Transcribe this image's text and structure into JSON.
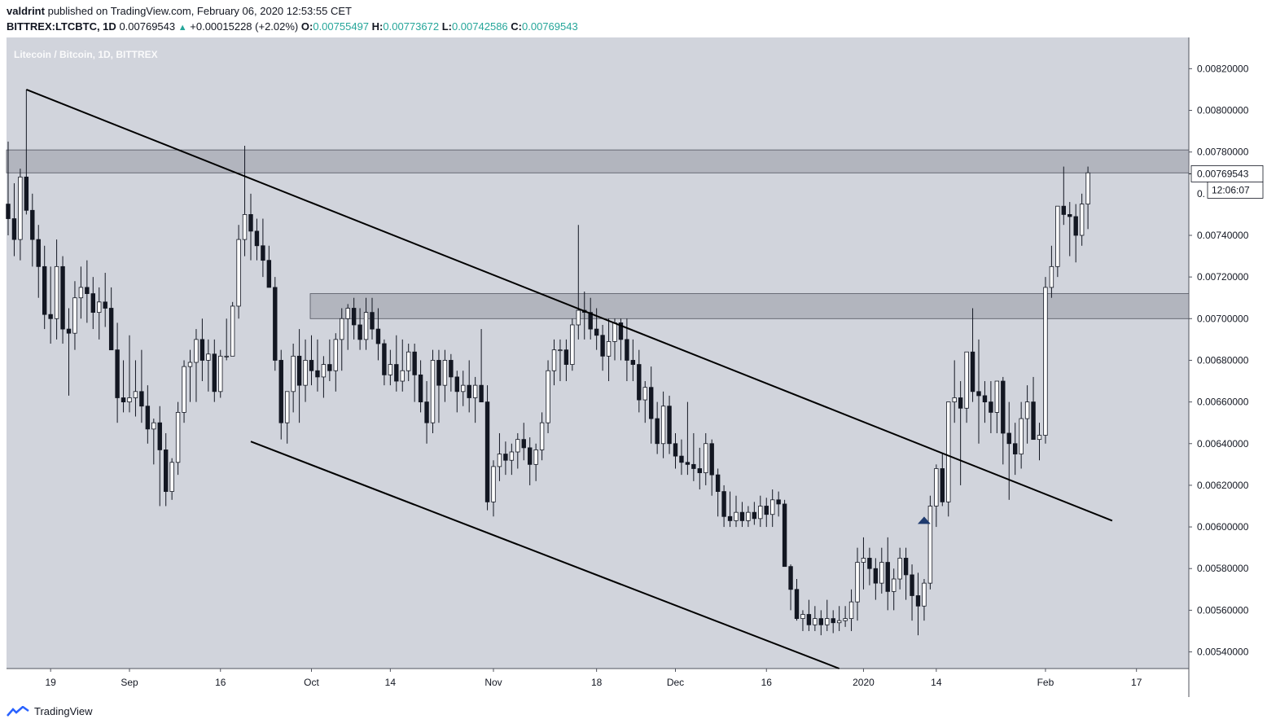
{
  "header": {
    "author": "valdrint",
    "published_text": "published on TradingView.com, February 06, 2020 12:53:55 CET",
    "symbol": "BITTREX:LTCBTC, 1D",
    "last": "0.00769543",
    "change": "+0.00015228 (+2.02%)",
    "o_label": "O:",
    "o": "0.00755497",
    "h_label": "H:",
    "h": "0.00773672",
    "l_label": "L:",
    "l": "0.00742586",
    "c_label": "C:",
    "c": "0.00769543"
  },
  "watermark": "Litecoin / Bitcoin, 1D, BITTREX",
  "brand": {
    "name": "TradingView"
  },
  "price_tag": {
    "value": "0.00769543",
    "countdown": "12:06:07",
    "hidden_tick": "0."
  },
  "colors": {
    "bg": "#d1d4dc",
    "zone": "#b2b5be",
    "candle_up": "#ffffff",
    "candle_down": "#131722",
    "arrow": "#1e3a6e",
    "positive": "#26a69a"
  },
  "chart_data": {
    "type": "candlestick",
    "title": "Litecoin / Bitcoin, 1D, BITTREX",
    "x_ticks": [
      "19",
      "Sep",
      "16",
      "Oct",
      "14",
      "Nov",
      "18",
      "Dec",
      "16",
      "2020",
      "14",
      "Feb",
      "17"
    ],
    "y_ticks": [
      "0.00820000",
      "0.00800000",
      "0.00780000",
      "0.00740000",
      "0.00720000",
      "0.00700000",
      "0.00680000",
      "0.00660000",
      "0.00640000",
      "0.00620000",
      "0.00600000",
      "0.00580000",
      "0.00560000",
      "0.00540000"
    ],
    "ylim": [
      0.00532,
      0.00835
    ],
    "resistance_zones": [
      {
        "low": 0.0077,
        "high": 0.00781
      },
      {
        "low": 0.007,
        "high": 0.00712
      }
    ],
    "trendlines": [
      {
        "name": "upper",
        "from": {
          "day": 3,
          "price": 0.0081
        },
        "to": {
          "day": 182,
          "price": 0.00603
        }
      },
      {
        "name": "lower",
        "from": {
          "day": 40,
          "price": 0.00641
        },
        "to": {
          "day": 137,
          "price": 0.00532
        }
      }
    ],
    "marker": {
      "type": "triangle-up",
      "day": 151,
      "price": 0.00603
    },
    "candles_ohlc": [
      [
        0.00755,
        0.00785,
        0.0074,
        0.00748
      ],
      [
        0.00748,
        0.00765,
        0.0073,
        0.00738
      ],
      [
        0.00738,
        0.00772,
        0.00728,
        0.00768
      ],
      [
        0.00768,
        0.0081,
        0.0075,
        0.00752
      ],
      [
        0.00752,
        0.0076,
        0.00725,
        0.00738
      ],
      [
        0.00738,
        0.00745,
        0.0071,
        0.00725
      ],
      [
        0.00725,
        0.00735,
        0.00695,
        0.00702
      ],
      [
        0.00702,
        0.00725,
        0.00688,
        0.007
      ],
      [
        0.007,
        0.00738,
        0.0069,
        0.00725
      ],
      [
        0.00725,
        0.0073,
        0.00688,
        0.00695
      ],
      [
        0.00695,
        0.00705,
        0.00663,
        0.00693
      ],
      [
        0.00693,
        0.00718,
        0.00685,
        0.0071
      ],
      [
        0.0071,
        0.00725,
        0.007,
        0.00715
      ],
      [
        0.00715,
        0.00728,
        0.00698,
        0.00712
      ],
      [
        0.00712,
        0.0072,
        0.00695,
        0.00703
      ],
      [
        0.00703,
        0.00715,
        0.0069,
        0.00708
      ],
      [
        0.00708,
        0.00722,
        0.00696,
        0.00705
      ],
      [
        0.00705,
        0.00715,
        0.00685,
        0.00685
      ],
      [
        0.00685,
        0.00698,
        0.0065,
        0.00662
      ],
      [
        0.00662,
        0.0068,
        0.00655,
        0.0066
      ],
      [
        0.0066,
        0.00692,
        0.00655,
        0.00662
      ],
      [
        0.00662,
        0.0068,
        0.00653,
        0.00665
      ],
      [
        0.00665,
        0.00685,
        0.0065,
        0.00658
      ],
      [
        0.00658,
        0.00668,
        0.0064,
        0.00647
      ],
      [
        0.00647,
        0.00652,
        0.0063,
        0.0065
      ],
      [
        0.0065,
        0.00658,
        0.0061,
        0.00637
      ],
      [
        0.00637,
        0.00645,
        0.0061,
        0.00617
      ],
      [
        0.00617,
        0.00633,
        0.00613,
        0.00631
      ],
      [
        0.00631,
        0.0066,
        0.00625,
        0.00655
      ],
      [
        0.00655,
        0.0068,
        0.0065,
        0.00677
      ],
      [
        0.00677,
        0.00685,
        0.0066,
        0.00679
      ],
      [
        0.00679,
        0.00695,
        0.0066,
        0.0069
      ],
      [
        0.0069,
        0.007,
        0.0067,
        0.0068
      ],
      [
        0.0068,
        0.0069,
        0.00665,
        0.00683
      ],
      [
        0.00683,
        0.0069,
        0.0066,
        0.00665
      ],
      [
        0.00665,
        0.00685,
        0.00662,
        0.00682
      ],
      [
        0.00682,
        0.007,
        0.0068,
        0.00682
      ],
      [
        0.00682,
        0.00708,
        0.00682,
        0.00706
      ],
      [
        0.00706,
        0.00745,
        0.007,
        0.00738
      ],
      [
        0.00738,
        0.00783,
        0.0073,
        0.0075
      ],
      [
        0.0075,
        0.0076,
        0.00728,
        0.00742
      ],
      [
        0.00742,
        0.00748,
        0.00728,
        0.00735
      ],
      [
        0.00735,
        0.00748,
        0.0072,
        0.00728
      ],
      [
        0.00728,
        0.00735,
        0.00715,
        0.00715
      ],
      [
        0.00715,
        0.0072,
        0.00675,
        0.0068
      ],
      [
        0.0068,
        0.00685,
        0.00642,
        0.0065
      ],
      [
        0.0065,
        0.00665,
        0.0064,
        0.00665
      ],
      [
        0.00665,
        0.00688,
        0.00655,
        0.00682
      ],
      [
        0.00682,
        0.00695,
        0.0065,
        0.00668
      ],
      [
        0.00668,
        0.0069,
        0.0066,
        0.0068
      ],
      [
        0.0068,
        0.00692,
        0.00668,
        0.00675
      ],
      [
        0.00675,
        0.0069,
        0.00665,
        0.00672
      ],
      [
        0.00672,
        0.00682,
        0.00662,
        0.00678
      ],
      [
        0.00678,
        0.0069,
        0.0067,
        0.00675
      ],
      [
        0.00675,
        0.00693,
        0.00665,
        0.0069
      ],
      [
        0.0069,
        0.00705,
        0.00675,
        0.007
      ],
      [
        0.007,
        0.00707,
        0.00685,
        0.00705
      ],
      [
        0.00705,
        0.0071,
        0.0069,
        0.00697
      ],
      [
        0.00697,
        0.00705,
        0.00685,
        0.0069
      ],
      [
        0.0069,
        0.0071,
        0.00685,
        0.00703
      ],
      [
        0.00703,
        0.0071,
        0.0069,
        0.00695
      ],
      [
        0.00695,
        0.00705,
        0.0068,
        0.00688
      ],
      [
        0.00688,
        0.0069,
        0.00668,
        0.00673
      ],
      [
        0.00673,
        0.00685,
        0.00668,
        0.00678
      ],
      [
        0.00678,
        0.00692,
        0.00665,
        0.0067
      ],
      [
        0.0067,
        0.0069,
        0.00665,
        0.00675
      ],
      [
        0.00675,
        0.00688,
        0.0067,
        0.00684
      ],
      [
        0.00684,
        0.00688,
        0.0066,
        0.00673
      ],
      [
        0.00673,
        0.0068,
        0.00655,
        0.0066
      ],
      [
        0.0066,
        0.0067,
        0.0064,
        0.0065
      ],
      [
        0.0065,
        0.00685,
        0.00645,
        0.0068
      ],
      [
        0.0068,
        0.00685,
        0.0065,
        0.00668
      ],
      [
        0.00668,
        0.00685,
        0.0066,
        0.0068
      ],
      [
        0.0068,
        0.00683,
        0.00665,
        0.00672
      ],
      [
        0.00672,
        0.00675,
        0.00655,
        0.00665
      ],
      [
        0.00665,
        0.00675,
        0.00658,
        0.00668
      ],
      [
        0.00668,
        0.0068,
        0.00655,
        0.00662
      ],
      [
        0.00662,
        0.00672,
        0.0065,
        0.00668
      ],
      [
        0.00668,
        0.00695,
        0.00662,
        0.0066
      ],
      [
        0.0066,
        0.00668,
        0.00608,
        0.00612
      ],
      [
        0.00612,
        0.00632,
        0.00605,
        0.00629
      ],
      [
        0.00629,
        0.00645,
        0.00622,
        0.00635
      ],
      [
        0.00635,
        0.00641,
        0.00625,
        0.00632
      ],
      [
        0.00632,
        0.0064,
        0.00625,
        0.00636
      ],
      [
        0.00636,
        0.00645,
        0.00628,
        0.00642
      ],
      [
        0.00642,
        0.0065,
        0.00632,
        0.00638
      ],
      [
        0.00638,
        0.00643,
        0.0062,
        0.0063
      ],
      [
        0.0063,
        0.0064,
        0.00622,
        0.00637
      ],
      [
        0.00637,
        0.00655,
        0.00632,
        0.0065
      ],
      [
        0.0065,
        0.0068,
        0.00645,
        0.00675
      ],
      [
        0.00675,
        0.0069,
        0.00668,
        0.00685
      ],
      [
        0.00685,
        0.0069,
        0.0067,
        0.00685
      ],
      [
        0.00685,
        0.0069,
        0.0067,
        0.00678
      ],
      [
        0.00678,
        0.007,
        0.00675,
        0.00697
      ],
      [
        0.00697,
        0.00745,
        0.0069,
        0.00704
      ],
      [
        0.00704,
        0.00713,
        0.0069,
        0.00703
      ],
      [
        0.00703,
        0.0071,
        0.0069,
        0.00695
      ],
      [
        0.00695,
        0.00705,
        0.00685,
        0.00692
      ],
      [
        0.00692,
        0.00697,
        0.00675,
        0.00682
      ],
      [
        0.00682,
        0.007,
        0.0067,
        0.00689
      ],
      [
        0.00689,
        0.007,
        0.0068,
        0.00698
      ],
      [
        0.00698,
        0.007,
        0.0068,
        0.0069
      ],
      [
        0.0069,
        0.007,
        0.0067,
        0.0068
      ],
      [
        0.0068,
        0.0069,
        0.0067,
        0.00678
      ],
      [
        0.00678,
        0.00685,
        0.00655,
        0.00661
      ],
      [
        0.00661,
        0.0067,
        0.0065,
        0.00667
      ],
      [
        0.00667,
        0.00677,
        0.0064,
        0.00652
      ],
      [
        0.00652,
        0.0066,
        0.00635,
        0.0064
      ],
      [
        0.0064,
        0.00665,
        0.00633,
        0.00658
      ],
      [
        0.00658,
        0.00663,
        0.00635,
        0.0064
      ],
      [
        0.0064,
        0.00645,
        0.00628,
        0.00634
      ],
      [
        0.00634,
        0.00642,
        0.00625,
        0.00631
      ],
      [
        0.00631,
        0.0066,
        0.00625,
        0.0063
      ],
      [
        0.0063,
        0.00645,
        0.00622,
        0.00628
      ],
      [
        0.00628,
        0.00638,
        0.00618,
        0.00626
      ],
      [
        0.00626,
        0.00645,
        0.0062,
        0.0064
      ],
      [
        0.0064,
        0.00642,
        0.00615,
        0.00625
      ],
      [
        0.00625,
        0.00628,
        0.00605,
        0.00617
      ],
      [
        0.00617,
        0.0062,
        0.006,
        0.00605
      ],
      [
        0.00605,
        0.00617,
        0.006,
        0.00603
      ],
      [
        0.00603,
        0.00615,
        0.006,
        0.00607
      ],
      [
        0.00607,
        0.00612,
        0.006,
        0.00603
      ],
      [
        0.00603,
        0.0061,
        0.006,
        0.00607
      ],
      [
        0.00607,
        0.00612,
        0.00601,
        0.00604
      ],
      [
        0.00604,
        0.00615,
        0.006,
        0.0061
      ],
      [
        0.0061,
        0.00614,
        0.006,
        0.00606
      ],
      [
        0.00606,
        0.00618,
        0.006,
        0.00613
      ],
      [
        0.00613,
        0.00617,
        0.00605,
        0.00611
      ],
      [
        0.00611,
        0.00613,
        0.006,
        0.00581
      ],
      [
        0.00581,
        0.00582,
        0.0056,
        0.0057
      ],
      [
        0.0057,
        0.00575,
        0.00555,
        0.00556
      ],
      [
        0.00556,
        0.0056,
        0.0055,
        0.00558
      ],
      [
        0.00558,
        0.00565,
        0.0055,
        0.00553
      ],
      [
        0.00553,
        0.00562,
        0.0055,
        0.00556
      ],
      [
        0.00556,
        0.0056,
        0.00548,
        0.00553
      ],
      [
        0.00553,
        0.00565,
        0.0055,
        0.00556
      ],
      [
        0.00556,
        0.0056,
        0.00549,
        0.00554
      ],
      [
        0.00554,
        0.00562,
        0.0055,
        0.00555
      ],
      [
        0.00555,
        0.00562,
        0.00552,
        0.00556
      ],
      [
        0.00556,
        0.0057,
        0.0055,
        0.00564
      ],
      [
        0.00564,
        0.0059,
        0.00555,
        0.00583
      ],
      [
        0.00583,
        0.00595,
        0.0057,
        0.00585
      ],
      [
        0.00585,
        0.0059,
        0.00572,
        0.0058
      ],
      [
        0.0058,
        0.00585,
        0.00565,
        0.00573
      ],
      [
        0.00573,
        0.0059,
        0.00568,
        0.00583
      ],
      [
        0.00583,
        0.00595,
        0.0056,
        0.00569
      ],
      [
        0.00569,
        0.0058,
        0.0056,
        0.00575
      ],
      [
        0.00575,
        0.0059,
        0.0057,
        0.00585
      ],
      [
        0.00585,
        0.0059,
        0.00565,
        0.00577
      ],
      [
        0.00577,
        0.00582,
        0.00555,
        0.00567
      ],
      [
        0.00567,
        0.00578,
        0.00548,
        0.00562
      ],
      [
        0.00562,
        0.00575,
        0.00555,
        0.00573
      ],
      [
        0.00573,
        0.00615,
        0.0057,
        0.0061
      ],
      [
        0.0061,
        0.0063,
        0.006,
        0.00628
      ],
      [
        0.00628,
        0.00635,
        0.0061,
        0.00612
      ],
      [
        0.00612,
        0.0064,
        0.00605,
        0.0066
      ],
      [
        0.0066,
        0.0068,
        0.0065,
        0.00662
      ],
      [
        0.00662,
        0.0067,
        0.0062,
        0.00657
      ],
      [
        0.00657,
        0.00684,
        0.0065,
        0.00684
      ],
      [
        0.00684,
        0.00705,
        0.0066,
        0.00665
      ],
      [
        0.00665,
        0.0069,
        0.0064,
        0.00663
      ],
      [
        0.00663,
        0.0067,
        0.0065,
        0.0066
      ],
      [
        0.0066,
        0.0067,
        0.00645,
        0.00655
      ],
      [
        0.00655,
        0.0067,
        0.00645,
        0.0067
      ],
      [
        0.0067,
        0.00672,
        0.0063,
        0.00645
      ],
      [
        0.00645,
        0.0066,
        0.00613,
        0.0064
      ],
      [
        0.0064,
        0.0065,
        0.00625,
        0.00635
      ],
      [
        0.00635,
        0.0066,
        0.00628,
        0.00652
      ],
      [
        0.00652,
        0.00668,
        0.0064,
        0.0066
      ],
      [
        0.0066,
        0.00672,
        0.00645,
        0.00642
      ],
      [
        0.00642,
        0.0065,
        0.00632,
        0.00644
      ],
      [
        0.00644,
        0.0072,
        0.0064,
        0.00715
      ],
      [
        0.00715,
        0.00735,
        0.0071,
        0.00725
      ],
      [
        0.00725,
        0.0075,
        0.0072,
        0.00754
      ],
      [
        0.00754,
        0.00773,
        0.00745,
        0.0075
      ],
      [
        0.0075,
        0.00756,
        0.0073,
        0.00749
      ],
      [
        0.00749,
        0.00755,
        0.00727,
        0.0074
      ],
      [
        0.0074,
        0.0076,
        0.00735,
        0.00755
      ],
      [
        0.00755,
        0.00773,
        0.00743,
        0.0077
      ]
    ]
  }
}
